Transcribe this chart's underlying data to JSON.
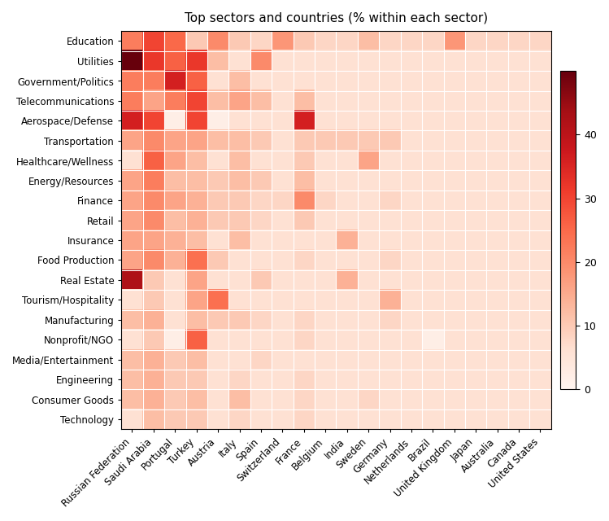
{
  "title": "Top sectors and countries (% within each sector)",
  "sectors": [
    "Education",
    "Utilities",
    "Government/Politics",
    "Telecommunications",
    "Aerospace/Defense",
    "Transportation",
    "Healthcare/Wellness",
    "Energy/Resources",
    "Finance",
    "Retail",
    "Insurance",
    "Food Production",
    "Real Estate",
    "Tourism/Hospitality",
    "Manufacturing",
    "Nonprofit/NGO",
    "Media/Entertainment",
    "Engineering",
    "Consumer Goods",
    "Technology"
  ],
  "countries": [
    "Russian Federation",
    "Saudi Arabia",
    "Portugal",
    "Turkey",
    "Austria",
    "Italy",
    "Spain",
    "Switzerland",
    "France",
    "Belgium",
    "India",
    "Sweden",
    "Germany",
    "Netherlands",
    "Brazil",
    "United Kingdom",
    "Japan",
    "Australia",
    "Canada",
    "United States"
  ],
  "data": [
    [
      22,
      30,
      25,
      10,
      20,
      10,
      8,
      18,
      10,
      8,
      8,
      12,
      8,
      8,
      8,
      18,
      8,
      8,
      8,
      8
    ],
    [
      50,
      32,
      26,
      32,
      12,
      6,
      20,
      6,
      6,
      6,
      6,
      6,
      6,
      6,
      6,
      6,
      6,
      6,
      6,
      6
    ],
    [
      22,
      22,
      36,
      26,
      6,
      12,
      6,
      6,
      6,
      6,
      6,
      6,
      6,
      6,
      6,
      6,
      6,
      6,
      6,
      6
    ],
    [
      22,
      16,
      22,
      30,
      12,
      16,
      12,
      6,
      12,
      6,
      6,
      6,
      6,
      6,
      6,
      6,
      6,
      6,
      6,
      6
    ],
    [
      36,
      30,
      2,
      30,
      2,
      6,
      6,
      6,
      36,
      6,
      6,
      6,
      6,
      6,
      6,
      6,
      6,
      6,
      6,
      6
    ],
    [
      16,
      20,
      16,
      16,
      12,
      12,
      10,
      6,
      10,
      10,
      10,
      10,
      10,
      6,
      6,
      6,
      6,
      6,
      6,
      6
    ],
    [
      6,
      26,
      16,
      12,
      6,
      12,
      6,
      6,
      10,
      6,
      6,
      16,
      6,
      6,
      6,
      6,
      6,
      6,
      6,
      6
    ],
    [
      16,
      22,
      12,
      12,
      10,
      12,
      10,
      6,
      12,
      6,
      6,
      6,
      6,
      6,
      6,
      6,
      6,
      6,
      6,
      6
    ],
    [
      16,
      20,
      16,
      14,
      10,
      10,
      8,
      8,
      20,
      8,
      6,
      6,
      8,
      6,
      6,
      6,
      6,
      6,
      6,
      6
    ],
    [
      16,
      20,
      12,
      14,
      10,
      10,
      8,
      6,
      10,
      6,
      6,
      6,
      6,
      6,
      6,
      6,
      6,
      6,
      6,
      6
    ],
    [
      16,
      16,
      14,
      12,
      6,
      12,
      6,
      6,
      6,
      6,
      14,
      6,
      6,
      6,
      6,
      6,
      6,
      6,
      6,
      6
    ],
    [
      16,
      20,
      14,
      24,
      10,
      6,
      6,
      6,
      8,
      6,
      6,
      6,
      8,
      6,
      6,
      6,
      6,
      6,
      6,
      6
    ],
    [
      42,
      10,
      6,
      16,
      6,
      6,
      10,
      6,
      6,
      6,
      14,
      6,
      6,
      6,
      6,
      6,
      6,
      6,
      6,
      6
    ],
    [
      6,
      10,
      6,
      16,
      24,
      6,
      6,
      6,
      6,
      6,
      6,
      6,
      14,
      6,
      6,
      6,
      6,
      6,
      6,
      6
    ],
    [
      12,
      14,
      6,
      12,
      10,
      10,
      8,
      6,
      8,
      6,
      6,
      6,
      8,
      6,
      6,
      6,
      6,
      6,
      6,
      6
    ],
    [
      6,
      10,
      2,
      26,
      6,
      6,
      6,
      6,
      8,
      6,
      6,
      6,
      6,
      6,
      2,
      6,
      6,
      6,
      6,
      6
    ],
    [
      12,
      14,
      10,
      12,
      6,
      6,
      8,
      6,
      6,
      6,
      6,
      6,
      6,
      6,
      6,
      6,
      6,
      6,
      6,
      6
    ],
    [
      12,
      14,
      10,
      10,
      6,
      8,
      6,
      6,
      8,
      6,
      6,
      6,
      6,
      6,
      6,
      6,
      6,
      6,
      6,
      6
    ],
    [
      12,
      14,
      10,
      12,
      6,
      12,
      6,
      6,
      8,
      6,
      6,
      8,
      6,
      6,
      6,
      6,
      6,
      6,
      6,
      6
    ],
    [
      6,
      12,
      10,
      10,
      6,
      8,
      6,
      6,
      8,
      6,
      6,
      6,
      6,
      6,
      6,
      6,
      6,
      6,
      6,
      6
    ]
  ],
  "vmin": 0,
  "vmax": 50,
  "colormap": "Reds",
  "figsize": [
    7.49,
    6.4
  ],
  "dpi": 100
}
